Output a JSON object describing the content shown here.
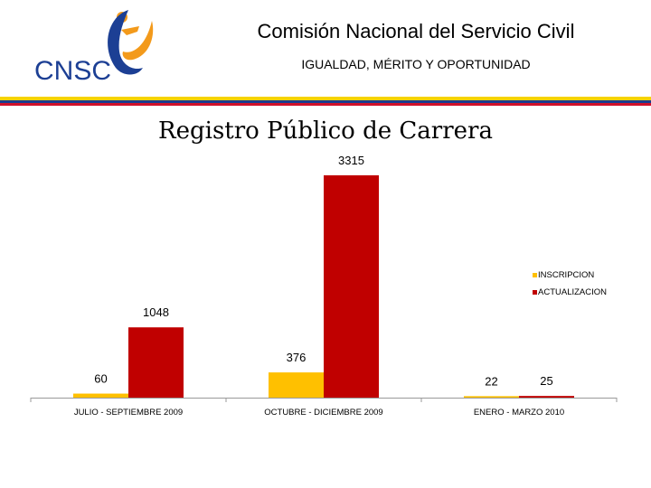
{
  "header": {
    "logo_text": "CNSC",
    "title": "Comisión Nacional del Servicio Civil",
    "subtitle": "IGUALDAD, MÉRITO Y OPORTUNIDAD"
  },
  "colors": {
    "flag_yellow": "#f6d300",
    "flag_blue": "#1a3d8f",
    "flag_red": "#d0102a",
    "logo_blue": "#1c3f94",
    "logo_orange": "#f39a1b",
    "series_inscripcion": "#ffc000",
    "series_actualizacion": "#c00000"
  },
  "page_title": "Registro Público de Carrera",
  "chart_data": {
    "type": "bar",
    "title": "",
    "xlabel": "",
    "ylabel": "",
    "categories": [
      "JULIO - SEPTIEMBRE 2009",
      "OCTUBRE - DICIEMBRE 2009",
      "ENERO - MARZO 2010"
    ],
    "series": [
      {
        "name": "INSCRIPCION",
        "color": "#ffc000",
        "values": [
          60,
          376,
          22
        ]
      },
      {
        "name": "ACTUALIZACION",
        "color": "#c00000",
        "values": [
          1048,
          3315,
          25
        ]
      }
    ],
    "ylim": [
      0,
      3315
    ],
    "grid": false,
    "legend_position": "right"
  }
}
